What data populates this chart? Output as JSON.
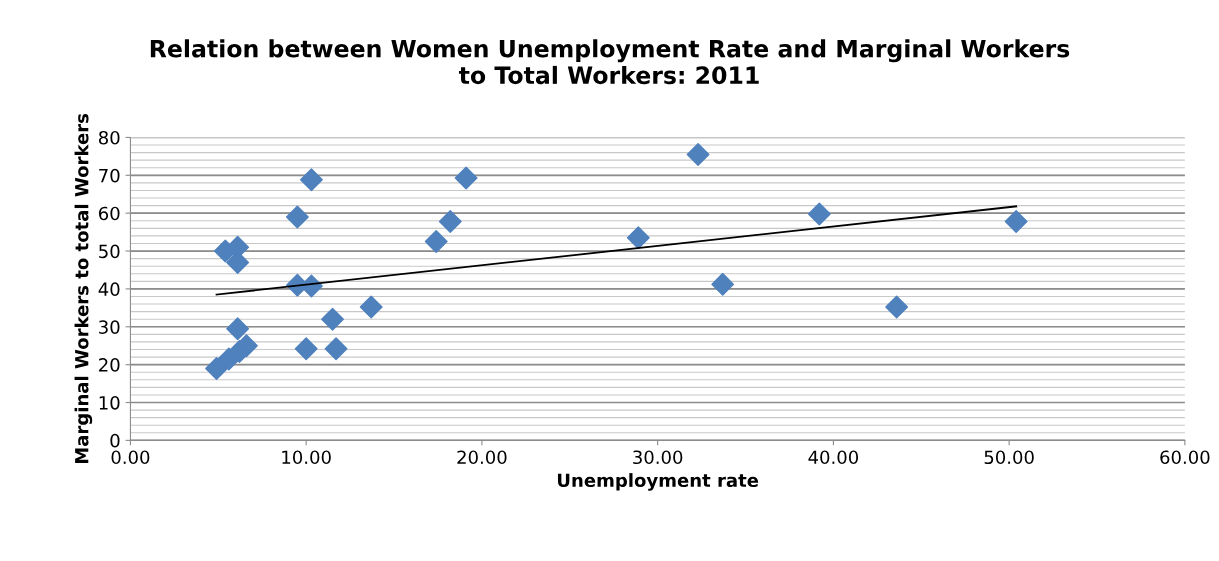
{
  "chart_data": {
    "type": "scatter",
    "title": "Relation between Women Unemployment Rate and Marginal Workers\nto Total Workers: 2011",
    "xlabel": "Unemployment rate",
    "ylabel": "Marginal Workers to total Workers",
    "series": [
      {
        "color": "#4f81bd",
        "marker": "diamond",
        "x": [
          4.9,
          5.6,
          6.2,
          6.6,
          6.1,
          5.4,
          5.9,
          6.1,
          6.1,
          9.5,
          10.3,
          9.5,
          10.3,
          10.0,
          11.7,
          11.5,
          13.7,
          17.4,
          18.2,
          19.1,
          28.9,
          32.3,
          33.7,
          39.2,
          43.6,
          50.4
        ],
        "values": [
          19,
          21.5,
          23.5,
          25,
          29.5,
          50,
          null,
          51,
          47,
          59,
          68.8,
          41,
          40.8,
          24.2,
          24.2,
          32,
          35.2,
          52.5,
          57.8,
          69.3,
          53.5,
          75.5,
          41.2,
          59.8,
          35.2,
          57.8
        ]
      },
      {
        "type": "line",
        "color": "#000000",
        "marker": "none",
        "x": [
          4.9,
          50.4
        ],
        "values": [
          38.5,
          61.8
        ]
      }
    ],
    "xlim": [
      0,
      60
    ],
    "xticks": [
      {
        "value": 0,
        "label": "0.00"
      },
      {
        "value": 10,
        "label": "10.00"
      },
      {
        "value": 20,
        "label": "20.00"
      },
      {
        "value": 30,
        "label": "30.00"
      },
      {
        "value": 40,
        "label": "40.00"
      },
      {
        "value": 50,
        "label": "50.00"
      },
      {
        "value": 60,
        "label": "60.00"
      }
    ],
    "ylim": [
      0,
      80
    ],
    "yticks": [
      0,
      10,
      20,
      30,
      40,
      50,
      60,
      70,
      80
    ],
    "grid": "y"
  }
}
